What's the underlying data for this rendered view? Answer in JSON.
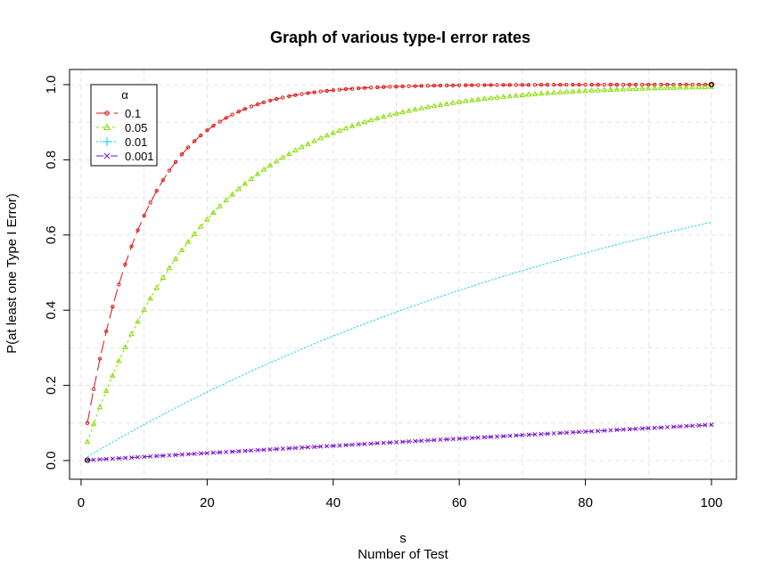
{
  "chart_data": {
    "type": "line",
    "title": "Graph of various  type-I error rates",
    "xlabel": "s",
    "xlabel_sub": "Number of Test",
    "ylabel": "P(at least one Type I Error)",
    "xlim": [
      1,
      100
    ],
    "ylim": [
      0,
      1
    ],
    "x_ticks": [
      0,
      20,
      40,
      60,
      80,
      100
    ],
    "y_ticks": [
      0.0,
      0.2,
      0.4,
      0.6,
      0.8,
      1.0
    ],
    "x_tick_labels": [
      "0",
      "20",
      "40",
      "60",
      "80",
      "100"
    ],
    "y_tick_labels": [
      "0.0",
      "0.2",
      "0.4",
      "0.6",
      "0.8",
      "1.0"
    ],
    "grid": true,
    "x": {
      "from": 1,
      "to": 100,
      "step": 1
    },
    "formula": "1 - (1 - alpha)^s",
    "legend": {
      "title": "α",
      "position": "top-left",
      "entries": [
        {
          "label": "0.1",
          "alpha": 0.1,
          "color": "#dd1111",
          "marker": "circle",
          "dash": "14,6"
        },
        {
          "label": "0.05",
          "alpha": 0.05,
          "color": "#88dd00",
          "marker": "triangle",
          "dash": "3,3"
        },
        {
          "label": "0.01",
          "alpha": 0.01,
          "color": "#00ccee",
          "marker": "plus",
          "dash": "2,2"
        },
        {
          "label": "0.001",
          "alpha": 0.001,
          "color": "#7a11cc",
          "marker": "cross",
          "dash": "8,3,2,3"
        }
      ]
    }
  }
}
